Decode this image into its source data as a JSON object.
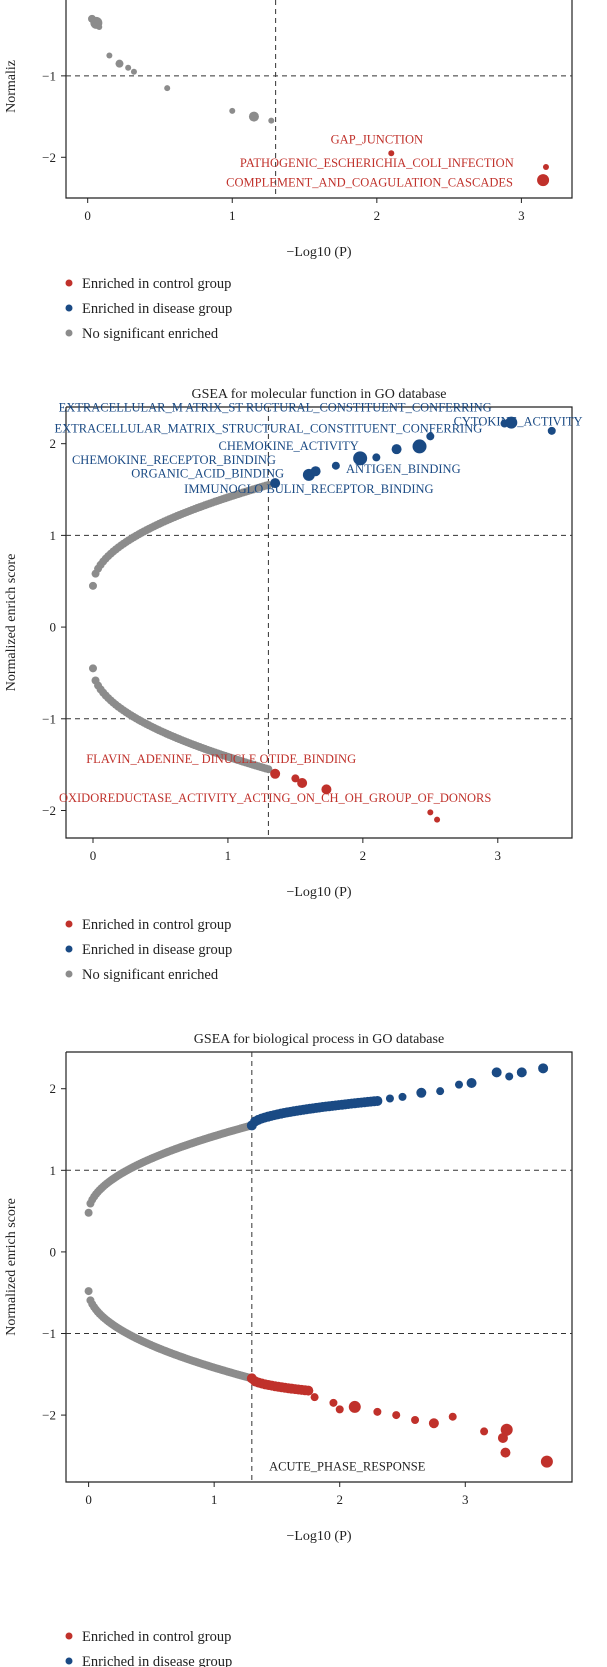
{
  "colors": {
    "control": "#c0312b",
    "disease": "#1a4a84",
    "ns": "#8c8c8c"
  },
  "legend": [
    {
      "key": "control",
      "label": "Enriched in control group"
    },
    {
      "key": "disease",
      "label": "Enriched in disease group"
    },
    {
      "key": "ns",
      "label": "No significant enriched"
    }
  ],
  "chart_data": [
    {
      "type": "scatter",
      "title": "",
      "xlabel": "−Log10 (P)",
      "ylabel": "Normaliz",
      "xlim": [
        -0.15,
        3.35
      ],
      "ylim": [
        -2.5,
        0.3
      ],
      "xticks": [
        0,
        1,
        2,
        3
      ],
      "yticks": [
        -1,
        -2
      ],
      "tick_labels_x": [
        "0",
        "1",
        "2",
        "3"
      ],
      "tick_labels_y": [
        "−1",
        "−2"
      ],
      "thresholds": {
        "x": 1.3,
        "y": [
          -1
        ]
      },
      "points": [
        [
          0.03,
          -0.3,
          "ns",
          4
        ],
        [
          0.06,
          -0.35,
          "ns",
          6
        ],
        [
          0.08,
          -0.4,
          "ns",
          3
        ],
        [
          0.15,
          -0.75,
          "ns",
          3
        ],
        [
          0.22,
          -0.85,
          "ns",
          4
        ],
        [
          0.28,
          -0.9,
          "ns",
          3
        ],
        [
          0.32,
          -0.95,
          "ns",
          3
        ],
        [
          0.55,
          -1.15,
          "ns",
          3
        ],
        [
          1.0,
          -1.43,
          "ns",
          3
        ],
        [
          1.15,
          -1.5,
          "ns",
          5
        ],
        [
          1.27,
          -1.55,
          "ns",
          3
        ],
        [
          2.1,
          -1.95,
          "control",
          3
        ],
        [
          3.17,
          -2.12,
          "control",
          3
        ],
        [
          3.15,
          -2.28,
          "control",
          6
        ]
      ],
      "annotations": [
        {
          "text": "GAP_JUNCTION",
          "group": "control",
          "x": 2.0,
          "y": -1.83
        },
        {
          "text": "PATHOGENIC_ESCHERICHIA_COLI_INFECTION",
          "group": "control",
          "x": 2.0,
          "y": -2.12
        },
        {
          "text": "COMPLEMENT_AND_COAGULATION_CASCADES",
          "group": "control",
          "x": 1.95,
          "y": -2.36
        }
      ]
    },
    {
      "type": "scatter",
      "title": "GSEA for molecular function in GO database",
      "xlabel": "−Log10 (P)",
      "ylabel": "Normalized enrich score",
      "xlim": [
        -0.2,
        3.55
      ],
      "ylim": [
        -2.3,
        2.4
      ],
      "xticks": [
        0,
        1,
        2,
        3
      ],
      "yticks": [
        2,
        1,
        0,
        -1,
        -2
      ],
      "tick_labels_x": [
        "0",
        "1",
        "2",
        "3"
      ],
      "tick_labels_y": [
        "2",
        "1",
        "0",
        "−1",
        "−2"
      ],
      "thresholds": {
        "x": 1.3,
        "y": [
          1,
          -1
        ]
      },
      "curves": [
        {
          "group": "ns",
          "x_start": 0.0,
          "x_end": 1.3,
          "y_start": 0.45,
          "y_end": 1.55,
          "n": 70,
          "size": 4
        },
        {
          "group": "ns",
          "x_start": 0.0,
          "x_end": 1.3,
          "y_start": -0.45,
          "y_end": -1.55,
          "n": 70,
          "size": 4
        }
      ],
      "points": [
        [
          1.35,
          1.57,
          "disease",
          5
        ],
        [
          1.6,
          1.66,
          "disease",
          6
        ],
        [
          1.65,
          1.7,
          "disease",
          5
        ],
        [
          1.8,
          1.76,
          "disease",
          4
        ],
        [
          1.98,
          1.84,
          "disease",
          7
        ],
        [
          2.1,
          1.85,
          "disease",
          4
        ],
        [
          2.25,
          1.94,
          "disease",
          5
        ],
        [
          2.42,
          1.97,
          "disease",
          7
        ],
        [
          2.5,
          2.08,
          "disease",
          4
        ],
        [
          3.05,
          2.22,
          "disease",
          4
        ],
        [
          3.1,
          2.23,
          "disease",
          6
        ],
        [
          3.4,
          2.14,
          "disease",
          4
        ],
        [
          1.35,
          -1.6,
          "control",
          5
        ],
        [
          1.5,
          -1.65,
          "control",
          4
        ],
        [
          1.55,
          -1.7,
          "control",
          5
        ],
        [
          1.73,
          -1.77,
          "control",
          5
        ],
        [
          2.5,
          -2.02,
          "control",
          3
        ],
        [
          2.55,
          -2.1,
          "control",
          3
        ]
      ],
      "annotations": [
        {
          "text": "EXTRACELLULAR_M  ATRIX_ST  RUCTURAL_CONSTITUENT_CONFERRING",
          "group": "disease",
          "x": 1.35,
          "y": 2.35
        },
        {
          "text": "CYTOKINE_ACTIVITY",
          "group": "disease",
          "x": 3.15,
          "y": 2.2
        },
        {
          "text": "EXTRACELLULAR_MATRIX_STRUCTURAL_CONSTITUENT_CONFERRING",
          "group": "disease",
          "x": 1.3,
          "y": 2.12
        },
        {
          "text": "CHEMOKINE_ACTIVITY",
          "group": "disease",
          "x": 1.45,
          "y": 1.93
        },
        {
          "text": "CHEMOKINE_RECEPTOR_BINDING",
          "group": "disease",
          "x": 0.6,
          "y": 1.78
        },
        {
          "text": "ANTIGEN_BINDING",
          "group": "disease",
          "x": 2.3,
          "y": 1.68
        },
        {
          "text": "ORGANIC_ACID_BINDING",
          "group": "disease",
          "x": 0.85,
          "y": 1.63
        },
        {
          "text": "IMMUNOGLO BULIN_RECEPTOR_BINDING",
          "group": "disease",
          "x": 1.6,
          "y": 1.46
        },
        {
          "text": "FLAVIN_ADENINE_ DINUCLE   OTIDE_BINDING",
          "group": "control",
          "x": 0.95,
          "y": -1.48
        },
        {
          "text": "OXIDOREDUCTASE_ACTIVITY_ACTING_ON_CH_OH_GROUP_OF_DONORS",
          "group": "control",
          "x": 1.35,
          "y": -1.91
        }
      ]
    },
    {
      "type": "scatter",
      "title": "GSEA for biological process in GO database",
      "xlabel": "−Log10 (P)",
      "ylabel": "Normalized enrich score",
      "xlim": [
        -0.18,
        3.85
      ],
      "ylim": [
        -2.82,
        2.45
      ],
      "xticks": [
        0,
        1,
        2,
        3
      ],
      "yticks": [
        2,
        1,
        0,
        -1,
        -2
      ],
      "tick_labels_x": [
        "0",
        "1",
        "2",
        "3"
      ],
      "tick_labels_y": [
        "2",
        "1",
        "0",
        "−1",
        "−2"
      ],
      "thresholds": {
        "x": 1.3,
        "y": [
          1,
          -1
        ]
      },
      "curves": [
        {
          "group": "ns",
          "x_start": 0.0,
          "x_end": 1.3,
          "y_start": 0.48,
          "y_end": 1.55,
          "n": 90,
          "size": 4
        },
        {
          "group": "ns",
          "x_start": 0.0,
          "x_end": 1.3,
          "y_start": -0.48,
          "y_end": -1.55,
          "n": 90,
          "size": 4
        },
        {
          "group": "disease",
          "x_start": 1.3,
          "x_end": 2.3,
          "y_start": 1.55,
          "y_end": 1.85,
          "n": 40,
          "size": 5
        },
        {
          "group": "control",
          "x_start": 1.3,
          "x_end": 1.75,
          "y_start": -1.55,
          "y_end": -1.7,
          "n": 18,
          "size": 5
        }
      ],
      "points": [
        [
          2.4,
          1.88,
          "disease",
          4
        ],
        [
          2.5,
          1.9,
          "disease",
          4
        ],
        [
          2.65,
          1.95,
          "disease",
          5
        ],
        [
          2.8,
          1.97,
          "disease",
          4
        ],
        [
          2.95,
          2.05,
          "disease",
          4
        ],
        [
          3.05,
          2.07,
          "disease",
          5
        ],
        [
          3.25,
          2.2,
          "disease",
          5
        ],
        [
          3.35,
          2.15,
          "disease",
          4
        ],
        [
          3.45,
          2.2,
          "disease",
          5
        ],
        [
          3.62,
          2.25,
          "disease",
          5
        ],
        [
          1.8,
          -1.78,
          "control",
          4
        ],
        [
          1.95,
          -1.85,
          "control",
          4
        ],
        [
          2.0,
          -1.93,
          "control",
          4
        ],
        [
          2.12,
          -1.9,
          "control",
          6
        ],
        [
          2.3,
          -1.96,
          "control",
          4
        ],
        [
          2.45,
          -2.0,
          "control",
          4
        ],
        [
          2.6,
          -2.06,
          "control",
          4
        ],
        [
          2.75,
          -2.1,
          "control",
          5
        ],
        [
          2.9,
          -2.02,
          "control",
          4
        ],
        [
          3.15,
          -2.2,
          "control",
          4
        ],
        [
          3.3,
          -2.28,
          "control",
          5
        ],
        [
          3.33,
          -2.18,
          "control",
          6
        ],
        [
          3.32,
          -2.46,
          "control",
          5
        ],
        [
          3.65,
          -2.57,
          "control",
          6
        ]
      ],
      "annotations": [
        {
          "text": "ACUTE_PHASE_RESPONSE",
          "group": "ns",
          "x": 2.06,
          "y": -2.68
        }
      ]
    }
  ]
}
